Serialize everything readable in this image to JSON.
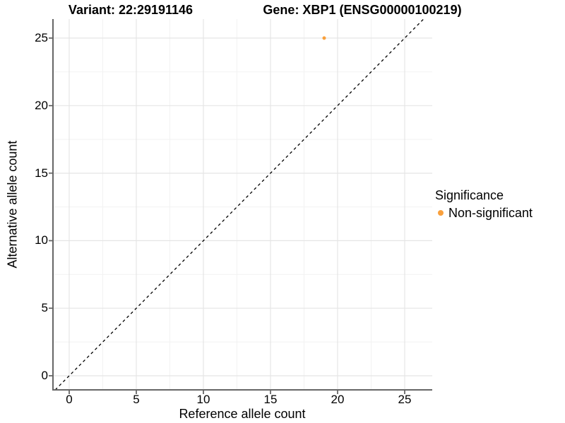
{
  "chart_data": {
    "type": "scatter",
    "titles": {
      "variant": "Variant: 22:29191146",
      "gene": "Gene: XBP1 (ENSG00000100219)"
    },
    "xlabel": "Reference allele count",
    "ylabel": "Alternative allele count",
    "x_ticks": [
      0,
      5,
      10,
      15,
      20,
      25
    ],
    "y_ticks": [
      0,
      5,
      10,
      15,
      20,
      25
    ],
    "xlim": [
      -1.2,
      27.1
    ],
    "ylim": [
      -1.0,
      26.4
    ],
    "grid": "major and minor gridlines, light gray on white panel",
    "points": [
      {
        "x": 19,
        "y": 25,
        "series": "Non-significant"
      }
    ],
    "reference_line": {
      "slope": 1,
      "intercept": 0,
      "style": "dashed",
      "color": "#000000"
    },
    "legend": {
      "position": "right",
      "title": "Significance",
      "items": [
        {
          "label": "Non-significant",
          "color": "#F9A03C"
        }
      ]
    },
    "colors": {
      "axis": "#666666",
      "grid_major": "#e5e5e5",
      "grid_minor": "#f2f2f2",
      "text": "#000000",
      "background": "#ffffff"
    }
  }
}
